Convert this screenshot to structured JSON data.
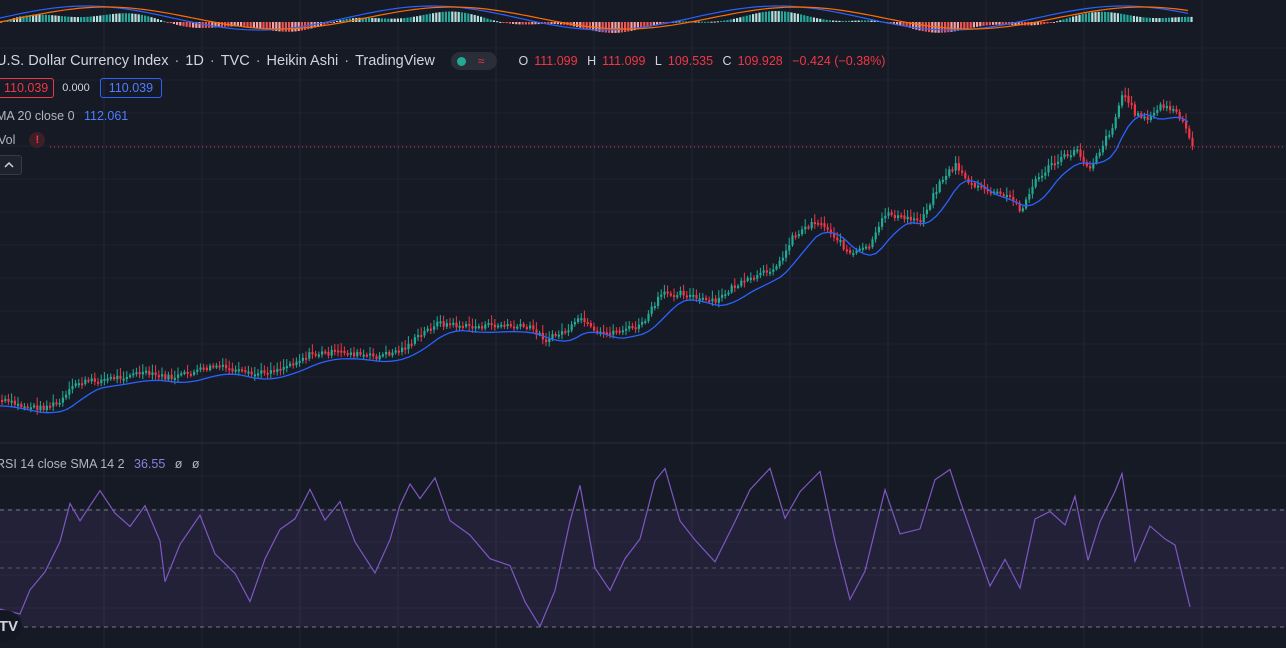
{
  "header": {
    "symbol": "U.S. Dollar Currency Index",
    "interval": "1D",
    "exchange": "TVC",
    "chart_style": "Heikin Ashi",
    "source": "TradingView",
    "separator": "·",
    "ohlc": {
      "o_label": "O",
      "o": "111.099",
      "h_label": "H",
      "h": "111.099",
      "l_label": "L",
      "l": "109.535",
      "c_label": "C",
      "c": "109.928",
      "change": "−0.424 (−0.38%)"
    }
  },
  "price_row": {
    "bid": "110.039",
    "spread": "0.000",
    "ask": "110.039"
  },
  "indicators": {
    "sma": {
      "label": "MA 20 close 0",
      "value": "112.061"
    },
    "vol": {
      "label": "Vol",
      "warning": "!"
    },
    "rsi": {
      "label": "RSI 14 close SMA 14 2",
      "value": "36.55",
      "phi1": "ø",
      "phi2": "ø"
    }
  },
  "collapse_icon": "chevron-up-icon",
  "logo_text": "TV",
  "colors": {
    "up": "#22ab94",
    "down": "#f23645",
    "ma": "#2962ff",
    "rsi": "#7e57c2",
    "bg": "#161a25"
  }
}
